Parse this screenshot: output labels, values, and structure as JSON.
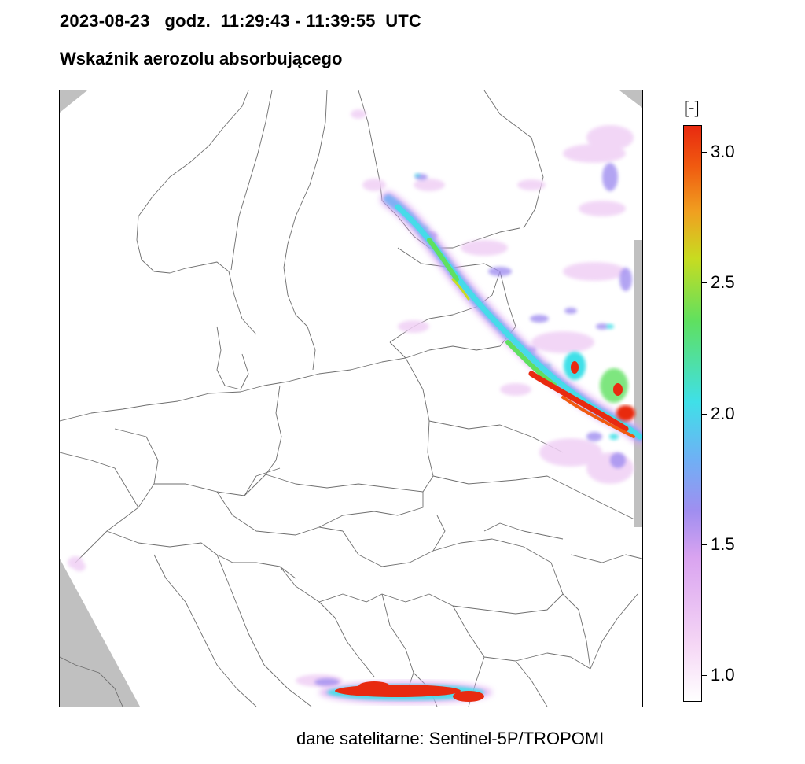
{
  "header": {
    "timestamp": "2023-08-23   godz.  11:29:43 - 11:39:55  UTC",
    "product": "Wskaźnik aerozolu absorbującego"
  },
  "colorbar": {
    "unit": "[-]",
    "min": 0.9,
    "max": 3.1,
    "ticks": [
      {
        "value": 3.0,
        "label": "3.0"
      },
      {
        "value": 2.5,
        "label": "2.5"
      },
      {
        "value": 2.0,
        "label": "2.0"
      },
      {
        "value": 1.5,
        "label": "1.5"
      },
      {
        "value": 1.0,
        "label": "1.0"
      }
    ],
    "colors": [
      "#ffffff",
      "#f5d6f5",
      "#d9a3f0",
      "#a08ef0",
      "#6fb0f5",
      "#3fe0e8",
      "#5fe060",
      "#c8dc20",
      "#f0a020",
      "#f05a10",
      "#e82a10"
    ]
  },
  "footer": {
    "source": "dane satelitarne: Sentinel-5P/TROPOMI"
  },
  "map": {
    "region": "Europe",
    "no_data_color": "#c0c0c0",
    "border_color": "#6e6e6e"
  }
}
